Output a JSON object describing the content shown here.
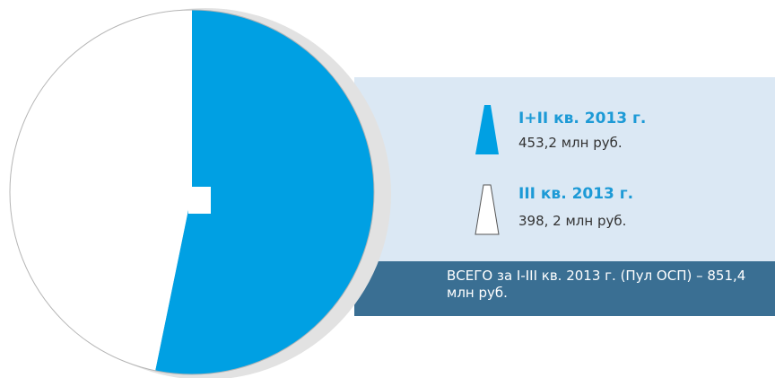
{
  "chart_data": {
    "type": "pie",
    "series": [
      {
        "name": "I+II кв. 2013 г.",
        "value": 453.2,
        "value_label": "453,2 млн руб.",
        "color": "#00a0e3"
      },
      {
        "name": "III кв. 2013 г.",
        "value": 398.2,
        "value_label": "398, 2 млн руб.",
        "color": "#ffffff"
      }
    ],
    "total_label": "ВСЕГО за I-III кв. 2013 г. (Пул ОСП) – 851,4 млн руб.",
    "legend_position": "right"
  }
}
